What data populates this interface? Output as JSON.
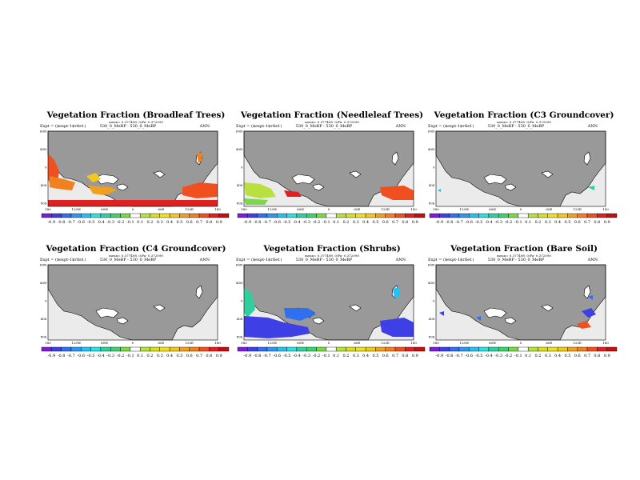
{
  "panels": [
    {
      "title": "Vegetation Fraction (Broadleaf Trees)",
      "meta": "mean= 0.377498 .0/Pa- 0.372090",
      "expt_left": "Expt = ($expt-1$rtle1)",
      "expt_center": "530_0_MeBP - 530_0_MeBP",
      "expt_right": "ANN"
    },
    {
      "title": "Vegetation Fraction (Needleleaf Trees)",
      "meta": "mean= 0.377498 .0/Pa- 0.372090",
      "expt_left": "Expt = ($expt-1$rtle1)",
      "expt_center": "530_0_MeBP - 530_0_MeBP",
      "expt_right": "ANN"
    },
    {
      "title": "Vegetation Fraction (C3 Groundcover)",
      "meta": "mean= 0.377498 .0/Pa- 0.372090",
      "expt_left": "Expt = ($expt-1$rtle1)",
      "expt_center": "530_0_MeBP - 530_0_MeBP",
      "expt_right": "ANN"
    },
    {
      "title": "Vegetation Fraction (C4 Groundcover)",
      "meta": "mean= 0.377498 .0/Pa- 0.372090",
      "expt_left": "Expt = ($expt-1$rtle1)",
      "expt_center": "530_0_MeBP - 530_0_MeBP",
      "expt_right": "ANN"
    },
    {
      "title": "Vegetation Fraction (Shrubs)",
      "meta": "mean= 0.377498 .0/Pa- 0.372090",
      "expt_left": "Expt = ($expt-1$rtle1)",
      "expt_center": "530_0_MeBP - 530_0_MeBP",
      "expt_right": "ANN"
    },
    {
      "title": "Vegetation Fraction (Bare Soil)",
      "meta": "mean= 0.377498 .0/Pa- 0.372090",
      "expt_left": "Expt = ($expt-1$rtle1)",
      "expt_center": "530_0_MeBP - 530_0_MeBP",
      "expt_right": "ANN"
    }
  ],
  "axes": {
    "lat_ticks": [
      "60N",
      "40N",
      "0",
      "40S",
      "80S"
    ],
    "lon_ticks": [
      "180",
      "120W",
      "60W",
      "0",
      "60E",
      "120E",
      "180"
    ]
  },
  "colorbar": {
    "labels": [
      "-0.9",
      "-0.8",
      "-0.7",
      "-0.6",
      "-0.5",
      "-0.4",
      "-0.3",
      "-0.2",
      "-0.1",
      "0.1",
      "0.2",
      "0.3",
      "0.4",
      "0.5",
      "0.6",
      "0.7",
      "0.8",
      "0.9"
    ],
    "colors": [
      "#7a1fd6",
      "#3f3fe6",
      "#2f6ff0",
      "#2f96f0",
      "#27c0f0",
      "#2fe0e0",
      "#2fd0a0",
      "#3fd070",
      "#7ad84a",
      "#ffffff",
      "#b8e040",
      "#d8e020",
      "#f0e020",
      "#f0c820",
      "#f0a020",
      "#f08020",
      "#f05020",
      "#e02020",
      "#c01010"
    ],
    "range": [
      -0.9,
      0.9
    ]
  },
  "colors": {
    "land": "#999999",
    "ocean": "#ebebeb",
    "white_zone": "#ffffff"
  }
}
